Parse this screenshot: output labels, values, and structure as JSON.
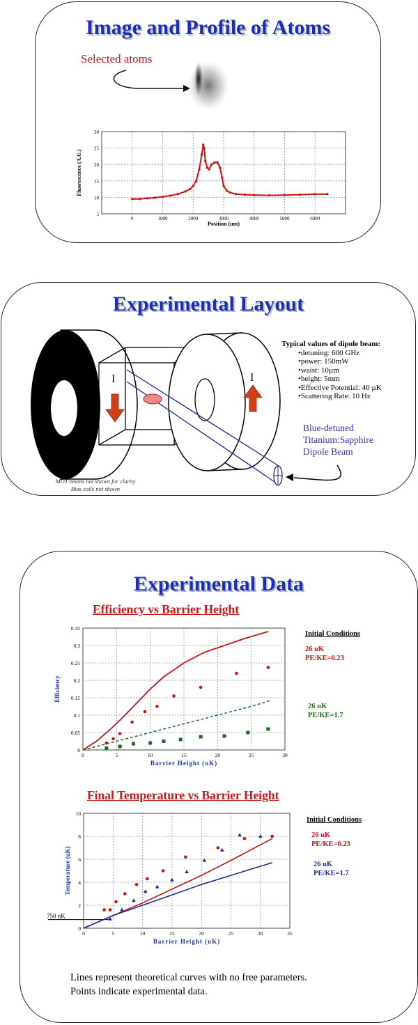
{
  "panel1": {
    "title": "Image and Profile of Atoms",
    "callout": "Selected atoms",
    "chart": {
      "type": "line",
      "xlabel": "Position (um)",
      "ylabel": "Fluorescence (A.U.)",
      "xlim": [
        -1000,
        7000
      ],
      "ylim": [
        5,
        30
      ],
      "xticks": [
        0,
        1000,
        2000,
        3000,
        4000,
        5000,
        6000
      ],
      "yticks": [
        5,
        10,
        15,
        20,
        25,
        30
      ],
      "color": "#cc1111",
      "series": [
        {
          "x": [
            0,
            250,
            500,
            750,
            1000,
            1250,
            1500,
            1750,
            1900,
            2000,
            2100,
            2200,
            2280,
            2330,
            2360,
            2400,
            2460,
            2520,
            2600,
            2700,
            2800,
            2880,
            2950,
            3000,
            3100,
            3200,
            3400,
            3700,
            4000,
            4500,
            5000,
            5500,
            6000,
            6400
          ],
          "y": [
            9.5,
            9.5,
            9.7,
            9.9,
            10.2,
            10.5,
            11.0,
            11.8,
            12.5,
            13.5,
            15.0,
            18.5,
            23.0,
            26.0,
            25.0,
            21.0,
            19.0,
            18.5,
            20.0,
            20.6,
            20.6,
            19.0,
            16.0,
            13.5,
            12.0,
            11.5,
            11.0,
            10.8,
            10.7,
            10.6,
            10.7,
            10.8,
            11.0,
            11.0
          ]
        }
      ]
    }
  },
  "panel2": {
    "title": "Experimental Layout",
    "current_left": "I",
    "current_right": "I",
    "params_title": "Typical values of dipole beam:",
    "params": [
      "•detuning: 600 GHz",
      "•power: 150mW",
      "•waist: 10µm",
      "•height: 5mm",
      "•Effective Potential: 40 µK",
      "•Scattering Rate: 10 Hz"
    ],
    "beam_label": [
      "Blue-detuned",
      "Titanium:Sapphire",
      "Dipole Beam"
    ],
    "note1": "MOT beams not shown for clarity",
    "note2": "Bias coils not shown"
  },
  "panel3": {
    "title": "Experimental Data",
    "chart1_title": "Efficiency vs Barrier Height",
    "chart2_title": "Final Temperature vs Barrier Height",
    "legend1": {
      "heading": "Initial Conditions",
      "a1": "26 uK",
      "a2": "PE/KE=0.23",
      "b1": "26 uK",
      "b2": "PE/KE=1.7"
    },
    "legend2": {
      "heading": "Initial Conditions",
      "a1": "26 uK",
      "a2": "PE/KE=0.23",
      "b1": "26 uK",
      "b2": "PE/KE=1.7"
    },
    "ref_label": "750 nK",
    "footer1": "Lines represent theoretical curves with no free parameters.",
    "footer2": "Points indicate experimental data."
  },
  "chart_data": [
    {
      "type": "scatter",
      "title": "Efficiency vs Barrier Height",
      "xlabel": "Barrier Height (uK)",
      "ylabel": "Efficiency",
      "xlim": [
        0,
        30
      ],
      "ylim": [
        0,
        0.35
      ],
      "xticks": [
        0,
        5,
        10,
        15,
        20,
        25,
        30
      ],
      "yticks": [
        0,
        0.05,
        0.1,
        0.15,
        0.2,
        0.25,
        0.3,
        0.35
      ],
      "colors": {
        "red": "#cc1111",
        "green": "#1a6e1a"
      },
      "points_red": {
        "x": [
          3.5,
          4.5,
          5.5,
          7.3,
          9.2,
          11.0,
          13.5,
          17.5,
          22.8,
          27.5
        ],
        "y": [
          0.02,
          0.032,
          0.047,
          0.08,
          0.11,
          0.125,
          0.155,
          0.18,
          0.22,
          0.237
        ]
      },
      "points_green": {
        "x": [
          3.5,
          5.5,
          7.5,
          10.0,
          12.0,
          14.5,
          17.5,
          21.0,
          24.5,
          27.5
        ],
        "y": [
          0.005,
          0.01,
          0.018,
          0.02,
          0.025,
          0.03,
          0.038,
          0.04,
          0.05,
          0.06
        ]
      },
      "line_red": {
        "x": [
          0,
          2,
          4,
          6,
          8,
          10,
          12,
          15,
          18,
          21,
          24,
          27.5
        ],
        "y": [
          0,
          0.025,
          0.058,
          0.095,
          0.135,
          0.175,
          0.21,
          0.25,
          0.28,
          0.3,
          0.32,
          0.34
        ]
      },
      "line_green": {
        "x": [
          0,
          5,
          10,
          15,
          20,
          25,
          28
        ],
        "y": [
          0,
          0.025,
          0.05,
          0.075,
          0.1,
          0.125,
          0.143
        ]
      }
    },
    {
      "type": "scatter",
      "title": "Final Temperature vs Barrier Height",
      "xlabel": "Barrier Height (uK)",
      "ylabel": "Temperature (uK)",
      "xlim": [
        0,
        35
      ],
      "ylim": [
        0,
        10
      ],
      "xticks": [
        0,
        5,
        10,
        15,
        20,
        25,
        30,
        35
      ],
      "yticks": [
        0,
        2,
        4,
        6,
        8,
        10
      ],
      "colors": {
        "red": "#cc1111",
        "blue": "#1a2a9a"
      },
      "reference_y": 0.75,
      "points_red": {
        "x": [
          3.5,
          4.5,
          5.5,
          7.0,
          9.0,
          10.8,
          13.5,
          17.3,
          22.8,
          27.3,
          32.0
        ],
        "y": [
          1.6,
          1.6,
          2.3,
          3.0,
          3.8,
          4.3,
          5.0,
          6.2,
          7.0,
          7.8,
          8.0
        ]
      },
      "points_blue": {
        "x": [
          4.5,
          6.5,
          8.5,
          10.5,
          12.5,
          15.0,
          17.5,
          20.5,
          23.5,
          26.5,
          30.0
        ],
        "y": [
          0.8,
          1.6,
          2.4,
          3.2,
          3.6,
          4.2,
          4.9,
          5.9,
          6.8,
          8.1,
          8.0
        ]
      },
      "line_red": {
        "x": [
          0,
          5,
          10,
          15,
          20,
          25,
          32
        ],
        "y": [
          0,
          1.1,
          2.2,
          3.4,
          4.6,
          5.9,
          7.8
        ]
      },
      "line_blue": {
        "x": [
          0,
          5,
          10,
          15,
          20,
          25,
          32
        ],
        "y": [
          0,
          1.1,
          2.0,
          2.9,
          3.8,
          4.6,
          5.7
        ]
      }
    }
  ]
}
